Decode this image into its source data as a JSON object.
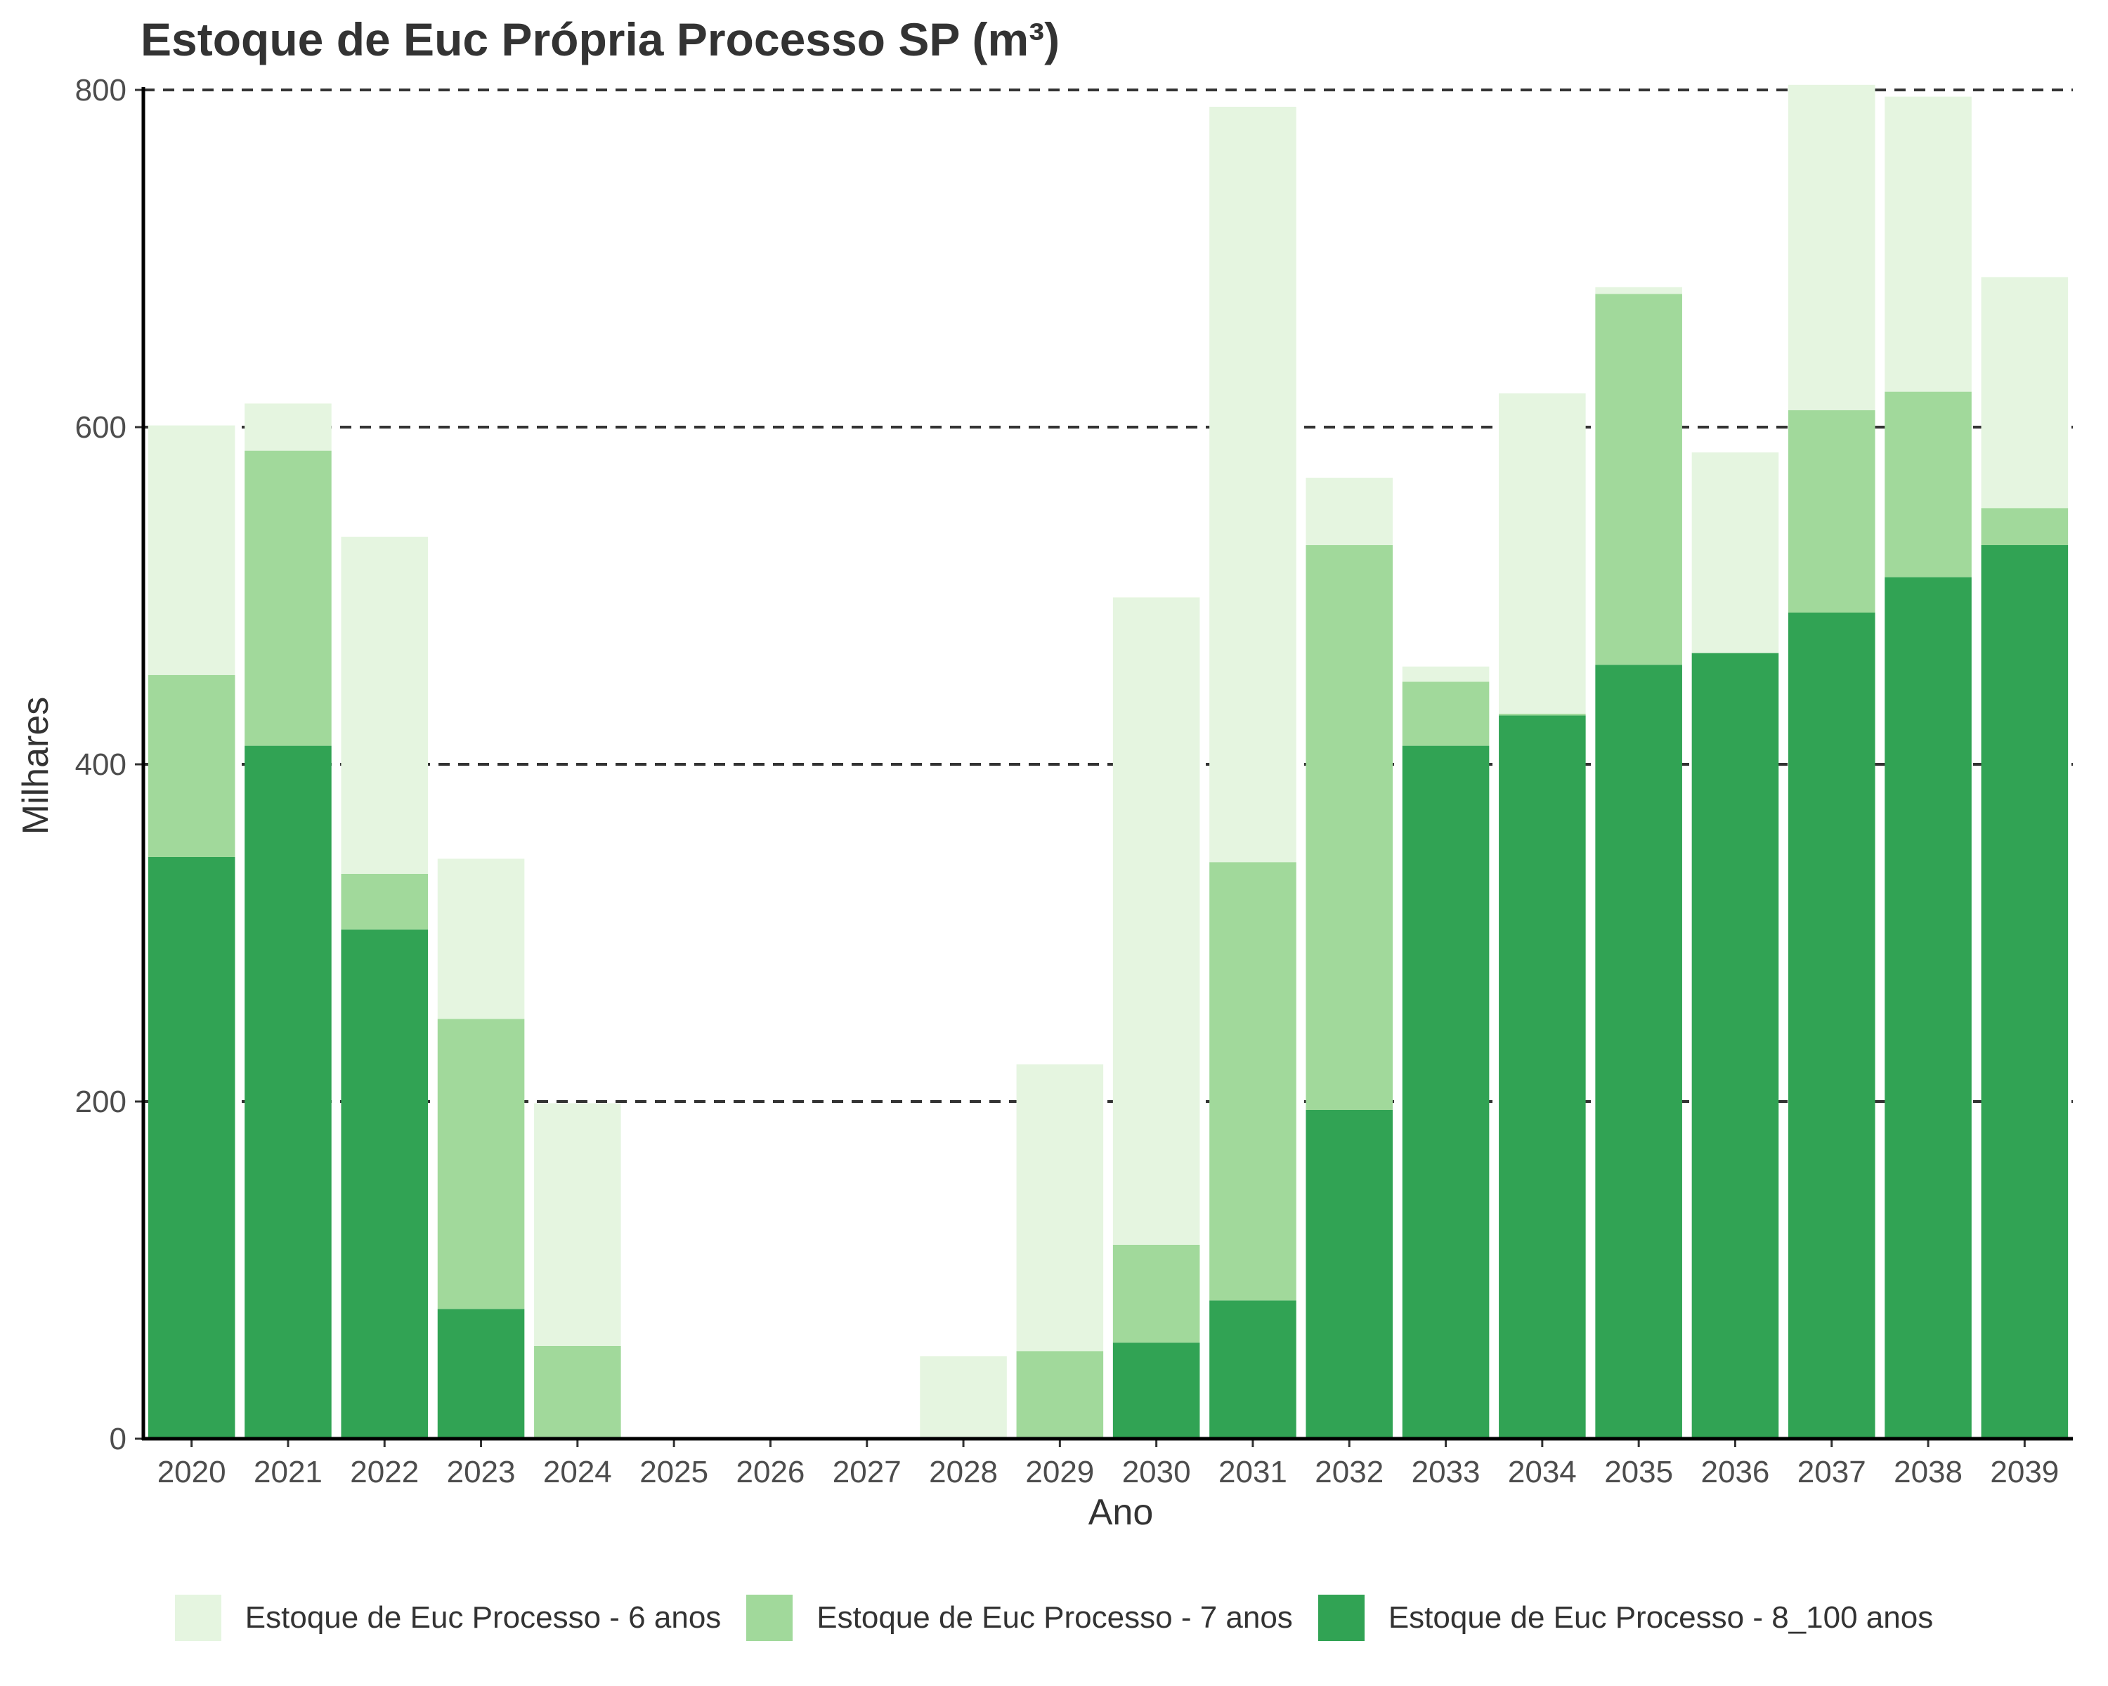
{
  "chart_data": {
    "type": "bar",
    "stacked": true,
    "title": "Estoque de Euc Própria Processo SP (m³)",
    "xlabel": "Ano",
    "ylabel": "Milhares",
    "ylim": [
      0,
      800
    ],
    "yticks": [
      0,
      200,
      400,
      600,
      800
    ],
    "grid": "horizontal dashed",
    "legend_position": "bottom",
    "categories": [
      "2020",
      "2021",
      "2022",
      "2023",
      "2024",
      "2025",
      "2026",
      "2027",
      "2028",
      "2029",
      "2030",
      "2031",
      "2032",
      "2033",
      "2034",
      "2035",
      "2036",
      "2037",
      "2038",
      "2039"
    ],
    "series": [
      {
        "name": "Estoque de Euc Processo - 8_100 anos",
        "color": "#31a354",
        "values": [
          345,
          411,
          302,
          77,
          0,
          0,
          0,
          0,
          0,
          0,
          57,
          82,
          195,
          411,
          429,
          459,
          466,
          490,
          511,
          530
        ]
      },
      {
        "name": "Estoque de Euc Processo - 7 anos",
        "color": "#a1d99b",
        "values": [
          108,
          175,
          33,
          172,
          55,
          0,
          0,
          0,
          0,
          52,
          58,
          260,
          335,
          38,
          1,
          220,
          0,
          120,
          110,
          22
        ]
      },
      {
        "name": "Estoque de Euc Processo - 6 anos",
        "color": "#e5f5e0",
        "values": [
          148,
          28,
          200,
          95,
          144,
          0,
          0,
          0,
          49,
          170,
          384,
          448,
          40,
          9,
          190,
          4,
          119,
          193,
          175,
          137
        ]
      }
    ]
  },
  "legend_order": [
    "Estoque de Euc Processo - 6 anos",
    "Estoque de Euc Processo - 7 anos",
    "Estoque de Euc Processo - 8_100 anos"
  ]
}
